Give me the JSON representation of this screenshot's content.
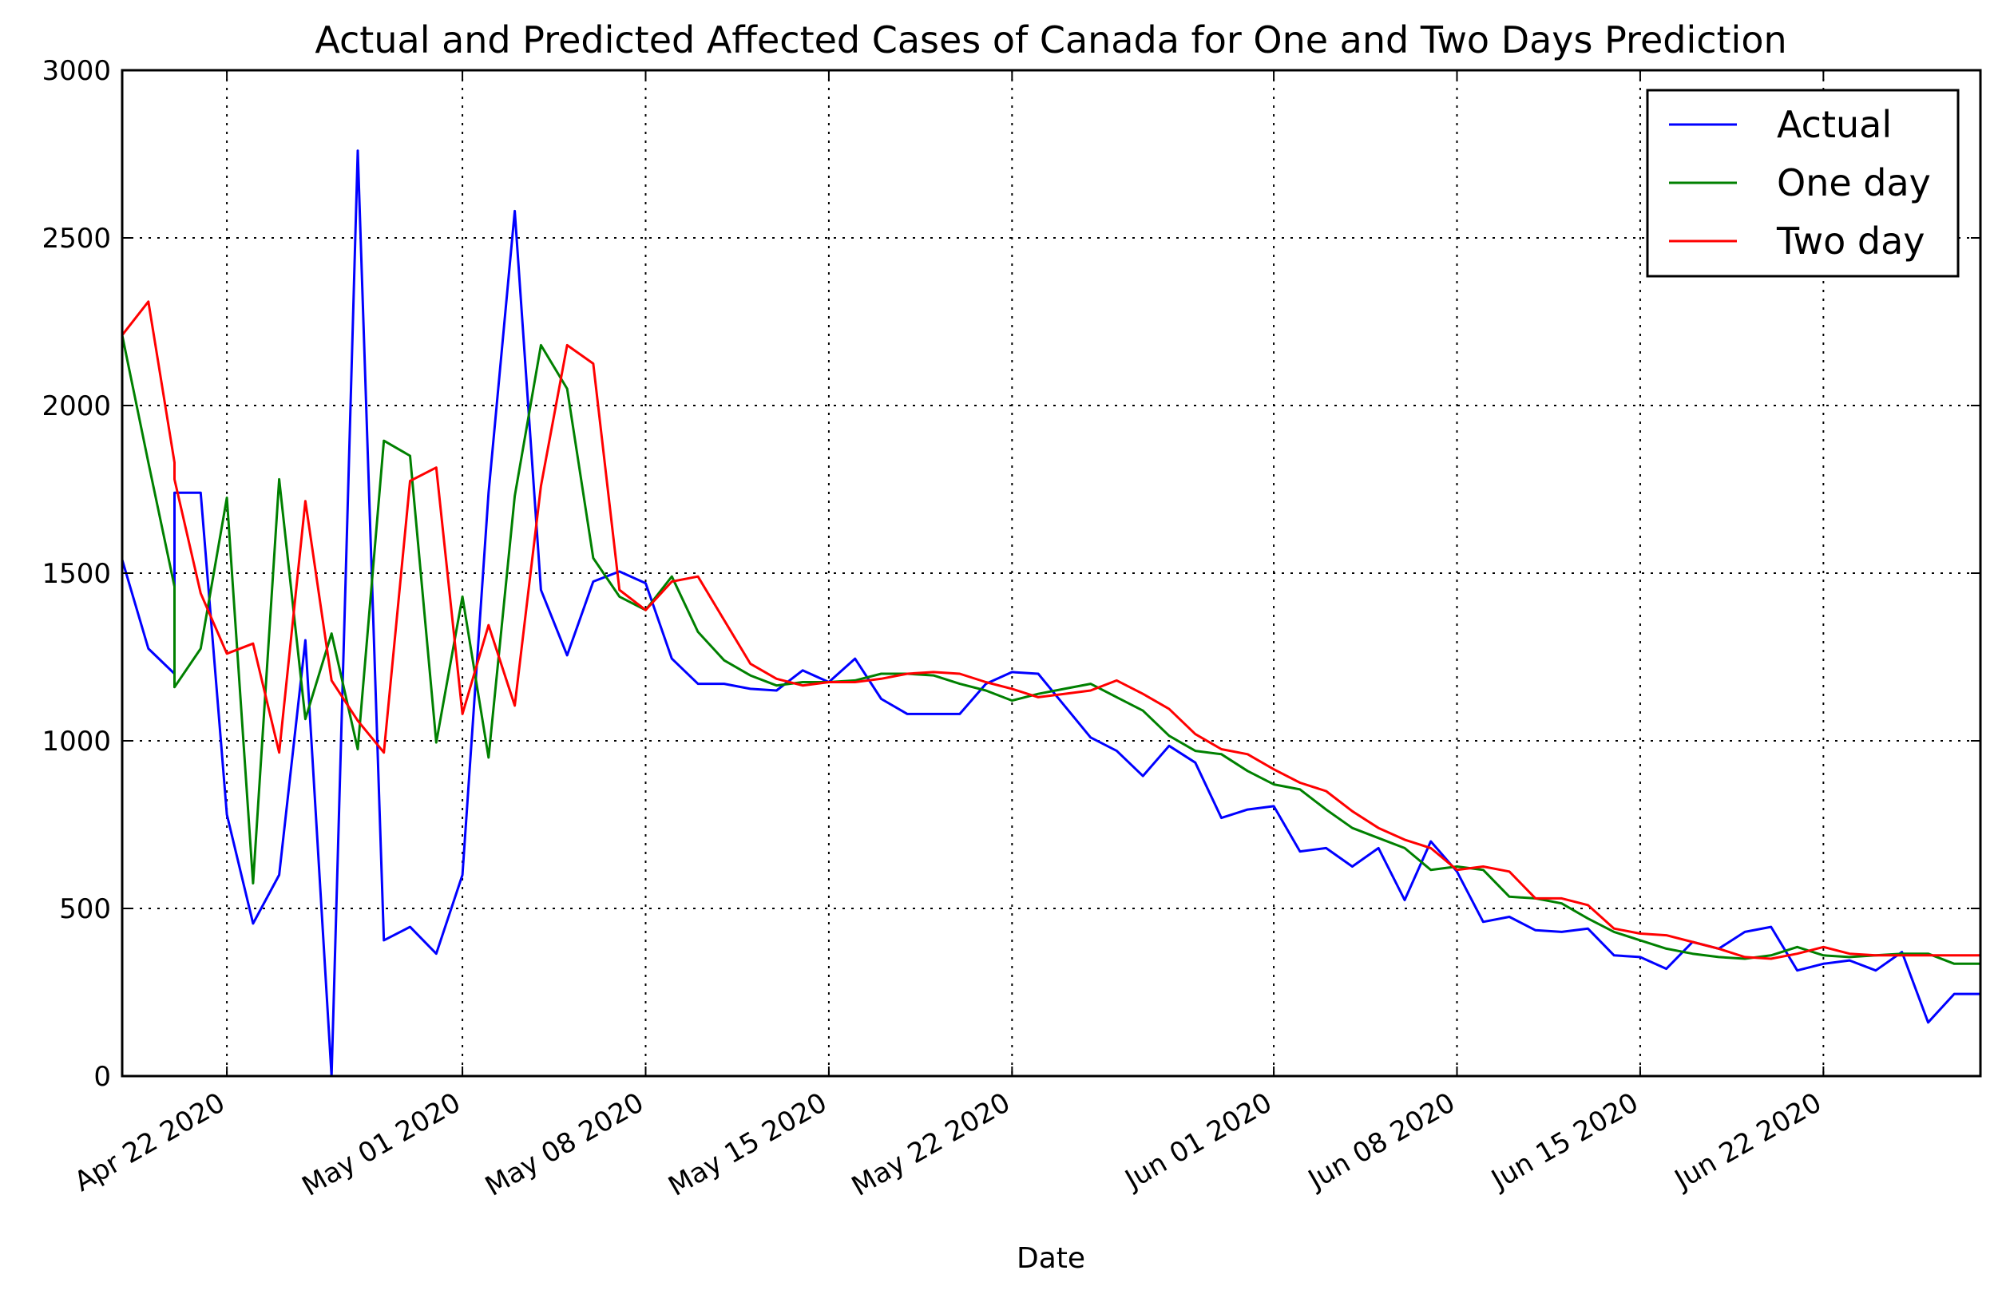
{
  "chart_data": {
    "type": "line",
    "title": "Actual and Predicted Affected Cases of Canada for One and Two Days Prediction",
    "xlabel": "Date",
    "ylabel": "",
    "ylim": [
      0,
      3000
    ],
    "yticks": [
      0,
      500,
      1000,
      1500,
      2000,
      2500,
      3000
    ],
    "xlim": [
      "2020-04-18",
      "2020-06-28"
    ],
    "xticks": [
      "2020-04-22",
      "2020-05-01",
      "2020-05-08",
      "2020-05-15",
      "2020-05-22",
      "2020-06-01",
      "2020-06-08",
      "2020-06-15",
      "2020-06-22"
    ],
    "xtick_labels": [
      "Apr 22 2020",
      "May 01 2020",
      "May 08 2020",
      "May 15 2020",
      "May 22 2020",
      "Jun 01 2020",
      "Jun 08 2020",
      "Jun 15 2020",
      "Jun 22 2020"
    ],
    "grid": true,
    "legend_position": "top-right",
    "series": [
      {
        "name": "Actual",
        "color": "#0000ff",
        "x": [
          "2020-04-18",
          "2020-04-19",
          "2020-04-20",
          "2020-04-20",
          "2020-04-21",
          "2020-04-22",
          "2020-04-23",
          "2020-04-24",
          "2020-04-25",
          "2020-04-26",
          "2020-04-27",
          "2020-04-28",
          "2020-04-29",
          "2020-04-30",
          "2020-05-01",
          "2020-05-02",
          "2020-05-03",
          "2020-05-04",
          "2020-05-05",
          "2020-05-06",
          "2020-05-07",
          "2020-05-08",
          "2020-05-09",
          "2020-05-10",
          "2020-05-11",
          "2020-05-12",
          "2020-05-13",
          "2020-05-14",
          "2020-05-15",
          "2020-05-16",
          "2020-05-17",
          "2020-05-18",
          "2020-05-19",
          "2020-05-20",
          "2020-05-21",
          "2020-05-22",
          "2020-05-23",
          "2020-05-24",
          "2020-05-25",
          "2020-05-26",
          "2020-05-27",
          "2020-05-28",
          "2020-05-29",
          "2020-05-30",
          "2020-05-31",
          "2020-06-01",
          "2020-06-02",
          "2020-06-03",
          "2020-06-04",
          "2020-06-05",
          "2020-06-06",
          "2020-06-07",
          "2020-06-08",
          "2020-06-09",
          "2020-06-10",
          "2020-06-11",
          "2020-06-12",
          "2020-06-13",
          "2020-06-14",
          "2020-06-15",
          "2020-06-16",
          "2020-06-17",
          "2020-06-18",
          "2020-06-19",
          "2020-06-20",
          "2020-06-21",
          "2020-06-22",
          "2020-06-23",
          "2020-06-24",
          "2020-06-25",
          "2020-06-26",
          "2020-06-27",
          "2020-06-28"
        ],
        "values": [
          1540,
          1275,
          1200,
          1740,
          1740,
          780,
          455,
          600,
          1300,
          0,
          2760,
          405,
          445,
          365,
          600,
          1740,
          2580,
          1450,
          1255,
          1475,
          1505,
          1470,
          1245,
          1170,
          1170,
          1155,
          1150,
          1210,
          1175,
          1245,
          1125,
          1080,
          1080,
          1080,
          1170,
          1205,
          1200,
          1105,
          1010,
          970,
          895,
          985,
          935,
          770,
          795,
          805,
          670,
          680,
          625,
          680,
          525,
          700,
          610,
          460,
          475,
          435,
          430,
          440,
          360,
          355,
          320,
          400,
          380,
          430,
          445,
          315,
          335,
          345,
          315,
          370,
          160,
          245,
          245
        ]
      },
      {
        "name": "One day",
        "color": "#008000",
        "x": [
          "2020-04-18",
          "2020-04-19",
          "2020-04-20",
          "2020-04-20",
          "2020-04-21",
          "2020-04-22",
          "2020-04-23",
          "2020-04-24",
          "2020-04-25",
          "2020-04-26",
          "2020-04-27",
          "2020-04-28",
          "2020-04-29",
          "2020-04-30",
          "2020-05-01",
          "2020-05-02",
          "2020-05-03",
          "2020-05-04",
          "2020-05-05",
          "2020-05-06",
          "2020-05-07",
          "2020-05-08",
          "2020-05-09",
          "2020-05-10",
          "2020-05-11",
          "2020-05-12",
          "2020-05-13",
          "2020-05-14",
          "2020-05-15",
          "2020-05-16",
          "2020-05-17",
          "2020-05-18",
          "2020-05-19",
          "2020-05-20",
          "2020-05-21",
          "2020-05-22",
          "2020-05-23",
          "2020-05-24",
          "2020-05-25",
          "2020-05-26",
          "2020-05-27",
          "2020-05-28",
          "2020-05-29",
          "2020-05-30",
          "2020-05-31",
          "2020-06-01",
          "2020-06-02",
          "2020-06-03",
          "2020-06-04",
          "2020-06-05",
          "2020-06-06",
          "2020-06-07",
          "2020-06-08",
          "2020-06-09",
          "2020-06-10",
          "2020-06-11",
          "2020-06-12",
          "2020-06-13",
          "2020-06-14",
          "2020-06-15",
          "2020-06-16",
          "2020-06-17",
          "2020-06-18",
          "2020-06-19",
          "2020-06-20",
          "2020-06-21",
          "2020-06-22",
          "2020-06-23",
          "2020-06-24",
          "2020-06-25",
          "2020-06-26",
          "2020-06-27",
          "2020-06-28"
        ],
        "values": [
          2210,
          1830,
          1460,
          1160,
          1275,
          1725,
          575,
          1780,
          1065,
          1320,
          975,
          1895,
          1850,
          995,
          1430,
          950,
          1730,
          2180,
          2050,
          1545,
          1430,
          1390,
          1490,
          1325,
          1240,
          1195,
          1165,
          1175,
          1175,
          1180,
          1200,
          1200,
          1195,
          1170,
          1150,
          1120,
          1140,
          1155,
          1170,
          1130,
          1090,
          1015,
          970,
          960,
          910,
          870,
          855,
          795,
          740,
          710,
          680,
          615,
          625,
          615,
          535,
          530,
          515,
          470,
          430,
          405,
          380,
          365,
          355,
          350,
          360,
          385,
          360,
          355,
          360,
          365,
          365,
          335,
          335
        ]
      },
      {
        "name": "Two day",
        "color": "#ff0000",
        "x": [
          "2020-04-18",
          "2020-04-19",
          "2020-04-20",
          "2020-04-20",
          "2020-04-21",
          "2020-04-22",
          "2020-04-23",
          "2020-04-24",
          "2020-04-25",
          "2020-04-26",
          "2020-04-27",
          "2020-04-28",
          "2020-04-29",
          "2020-04-30",
          "2020-05-01",
          "2020-05-02",
          "2020-05-03",
          "2020-05-04",
          "2020-05-05",
          "2020-05-06",
          "2020-05-07",
          "2020-05-08",
          "2020-05-09",
          "2020-05-10",
          "2020-05-11",
          "2020-05-12",
          "2020-05-13",
          "2020-05-14",
          "2020-05-15",
          "2020-05-16",
          "2020-05-17",
          "2020-05-18",
          "2020-05-19",
          "2020-05-20",
          "2020-05-21",
          "2020-05-22",
          "2020-05-23",
          "2020-05-24",
          "2020-05-25",
          "2020-05-26",
          "2020-05-27",
          "2020-05-28",
          "2020-05-29",
          "2020-05-30",
          "2020-05-31",
          "2020-06-01",
          "2020-06-02",
          "2020-06-03",
          "2020-06-04",
          "2020-06-05",
          "2020-06-06",
          "2020-06-07",
          "2020-06-08",
          "2020-06-09",
          "2020-06-10",
          "2020-06-11",
          "2020-06-12",
          "2020-06-13",
          "2020-06-14",
          "2020-06-15",
          "2020-06-16",
          "2020-06-17",
          "2020-06-18",
          "2020-06-19",
          "2020-06-20",
          "2020-06-21",
          "2020-06-22",
          "2020-06-23",
          "2020-06-24",
          "2020-06-25",
          "2020-06-26",
          "2020-06-27",
          "2020-06-28"
        ],
        "values": [
          2210,
          2310,
          1830,
          1780,
          1440,
          1260,
          1290,
          965,
          1715,
          1180,
          1060,
          965,
          1775,
          1815,
          1080,
          1345,
          1105,
          1760,
          2180,
          2125,
          1450,
          1390,
          1475,
          1490,
          1360,
          1230,
          1185,
          1165,
          1175,
          1175,
          1185,
          1200,
          1205,
          1200,
          1175,
          1155,
          1130,
          1140,
          1150,
          1180,
          1140,
          1095,
          1020,
          975,
          960,
          915,
          875,
          850,
          790,
          740,
          705,
          680,
          615,
          625,
          610,
          530,
          530,
          510,
          440,
          425,
          420,
          400,
          380,
          355,
          350,
          365,
          385,
          365,
          360,
          360,
          360,
          360,
          360
        ]
      }
    ]
  }
}
